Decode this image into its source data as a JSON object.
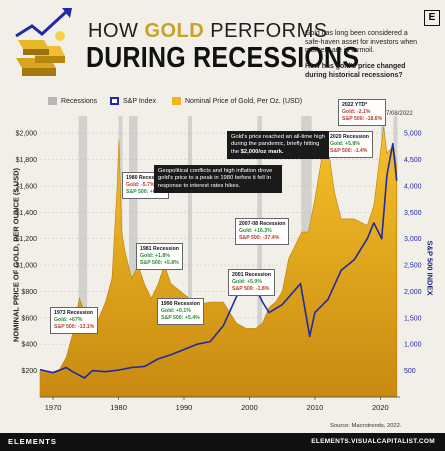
{
  "header": {
    "title_prefix": "HOW ",
    "title_gold": "GOLD",
    "title_suffix": " PERFORMS",
    "title_line2": "DURING RECESSIONS",
    "intro": "Gold has long been considered a safe-haven asset for investors when markets are in turmoil.",
    "question": "How has gold's price changed during historical recessions?",
    "logo_mark": "E"
  },
  "legend": {
    "recessions": "Recessions",
    "sp": "S&P Index",
    "gold": "Nominal Price of Gold, Per Oz. (USD)"
  },
  "as_of": "*As of 07/08/2022",
  "colors": {
    "gold": "#f2b418",
    "gold_dark": "#b8820f",
    "sp": "#1f2aa3",
    "recession": "#b8b8b8"
  },
  "axes": {
    "left_label": "NOMINAL PRICE OF GOLD, PER OUNCE ($ USD)",
    "right_label": "S&P 500 INDEX",
    "left_ticks": [
      "$200",
      "$400",
      "$600",
      "$800",
      "$1,000",
      "$1,200",
      "$1,400",
      "$1,600",
      "$1,800",
      "$2,000"
    ],
    "right_ticks": [
      "500",
      "1,000",
      "1,500",
      "2,000",
      "2,500",
      "3,000",
      "3,500",
      "4,000",
      "4,500",
      "5,000"
    ],
    "x_ticks": [
      "1970",
      "1980",
      "1990",
      "2000",
      "2010",
      "2020"
    ]
  },
  "annotations": [
    {
      "title": "1973 Recession",
      "gold": "Gold: +67%",
      "sp": "S&P 500: -13.1%"
    },
    {
      "title": "1980 Recession",
      "gold": "Gold: -5.7%",
      "sp": "S&P 500: +6.6%"
    },
    {
      "title": "1981 Recession",
      "gold": "Gold: +1.8%",
      "sp": "S&P 500: +5.8%"
    },
    {
      "title": "1990 Recession",
      "gold": "Gold: +0.1%",
      "sp": "S&P 500: +5.4%"
    },
    {
      "title": "2001 Recession",
      "gold": "Gold: +5.0%",
      "sp": "S&P 500: -1.8%"
    },
    {
      "title": "2007-08 Recession",
      "gold": "Gold: +16.3%",
      "sp": "S&P 500: -37.4%"
    },
    {
      "title": "2020 Recession",
      "gold": "Gold: +5.8%",
      "sp": "S&P 500: -1.4%"
    },
    {
      "title": "2022 YTD*",
      "gold": "Gold: -2.1%",
      "sp": "S&P 500: -18.6%"
    }
  ],
  "notes": {
    "peak1980": "Geopolitical conflicts and high inflation drove gold's price to a peak in 1980 before it fell in response to interest rates hikes.",
    "pandemic_a": "Gold's price reached an all-time high during the pandemic, briefly hitting the ",
    "pandemic_b": "$2,000/oz mark."
  },
  "source": "Source: Macrotrends, 2022.",
  "footer": {
    "brand": "ELEMENTS",
    "url": "ELEMENTS.VISUALCAPITALIST.COM"
  },
  "chart_data": {
    "type": "area",
    "title": "HOW GOLD PERFORMS DURING RECESSIONS",
    "xlabel": "",
    "ylabel": "NOMINAL PRICE OF GOLD, PER OUNCE ($ USD)",
    "y2label": "S&P 500 INDEX",
    "xlim": [
      1968,
      2023
    ],
    "ylim": [
      0,
      2100
    ],
    "y2lim": [
      0,
      5250
    ],
    "recessions": [
      [
        1973.9,
        1975.2
      ],
      [
        1980.0,
        1980.6
      ],
      [
        1981.6,
        1982.9
      ],
      [
        1990.6,
        1991.2
      ],
      [
        2001.2,
        2001.9
      ],
      [
        2007.9,
        2009.5
      ],
      [
        2020.1,
        2020.4
      ],
      [
        2022.0,
        2022.5
      ]
    ],
    "series": [
      {
        "name": "Nominal Price of Gold, Per Oz. (USD)",
        "axis": "left",
        "x": [
          1968,
          1970,
          1971,
          1972,
          1973,
          1974,
          1975,
          1976,
          1977,
          1978,
          1979,
          1979.8,
          1980.05,
          1980.5,
          1981,
          1982,
          1983,
          1984,
          1985,
          1986,
          1987,
          1988,
          1990,
          1992,
          1994,
          1996,
          1998,
          1999.5,
          2001,
          2002,
          2003,
          2004,
          2005,
          2006,
          2007,
          2008,
          2009,
          2010,
          2011,
          2011.7,
          2012,
          2013,
          2014,
          2016,
          2018,
          2019,
          2020.5,
          2021,
          2022,
          2022.5
        ],
        "y": [
          200,
          190,
          210,
          300,
          480,
          750,
          620,
          540,
          600,
          720,
          900,
          1600,
          1950,
          1250,
          1100,
          900,
          1000,
          850,
          750,
          850,
          1000,
          860,
          780,
          700,
          720,
          720,
          560,
          520,
          520,
          560,
          680,
          720,
          800,
          1050,
          1150,
          1250,
          1250,
          1500,
          1800,
          2000,
          1900,
          1550,
          1350,
          1350,
          1300,
          1450,
          2050,
          1850,
          1900,
          1750
        ]
      },
      {
        "name": "S&P Index",
        "axis": "right",
        "x": [
          1968,
          1970,
          1972,
          1973,
          1974.8,
          1976,
          1978,
          1980,
          1982,
          1984,
          1986,
          1988,
          1990,
          1992,
          1994,
          1996,
          1998,
          2000,
          2002,
          2003,
          2005,
          2007.8,
          2009.2,
          2010,
          2012,
          2014,
          2016,
          2018,
          2019,
          2020.2,
          2021,
          2021.9,
          2022.5
        ],
        "y": [
          520,
          460,
          560,
          480,
          360,
          500,
          480,
          510,
          560,
          580,
          720,
          800,
          900,
          1000,
          1050,
          1350,
          1900,
          2300,
          1800,
          1600,
          1750,
          2150,
          1150,
          1600,
          1850,
          2400,
          2600,
          3000,
          3300,
          3000,
          4200,
          4800,
          4100
        ]
      }
    ]
  }
}
